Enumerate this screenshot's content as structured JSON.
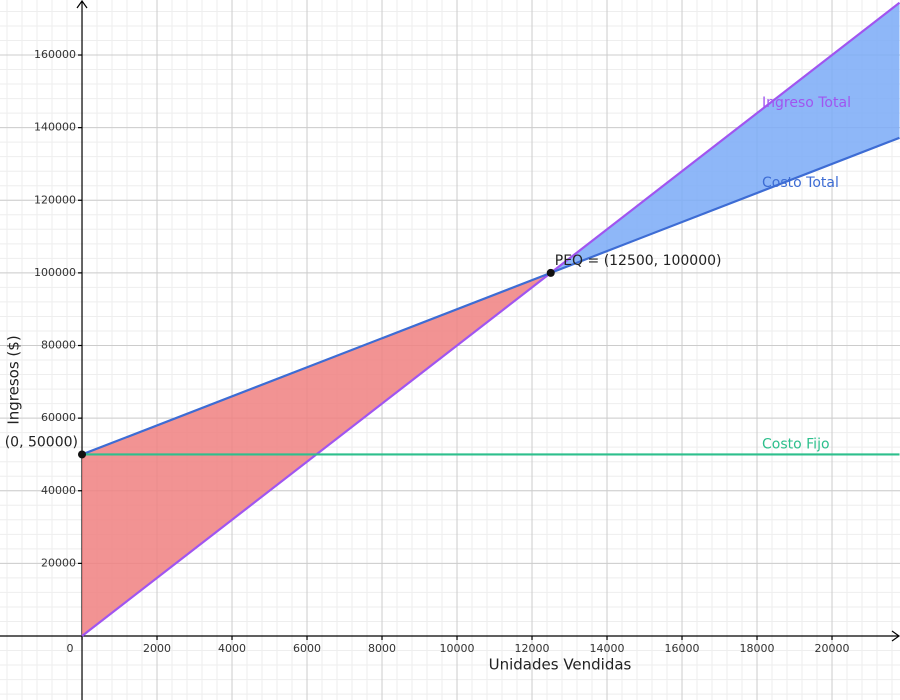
{
  "chart_data": {
    "type": "line",
    "x_label": "Unidades Vendidas",
    "y_label": "Ingresos ($)",
    "x": [
      0,
      12500,
      21800
    ],
    "series": [
      {
        "name": "Ingreso Total",
        "color": "#a055f0",
        "values": [
          0,
          100000,
          174400
        ]
      },
      {
        "name": "Costo Total",
        "color": "#3d6cd4",
        "values": [
          50000,
          100000,
          137200
        ]
      },
      {
        "name": "Costo Fijo",
        "color": "#2dbf8c",
        "values": [
          50000,
          50000,
          50000
        ]
      }
    ],
    "points": [
      {
        "label": "(0, 50000)",
        "x": 0,
        "y": 50000
      },
      {
        "label": "PEQ = (12500, 100000)",
        "x": 12500,
        "y": 100000
      }
    ],
    "xlim": [
      -2187,
      21813
    ],
    "ylim": [
      -17625,
      175150
    ],
    "xticks": [
      0,
      2000,
      4000,
      6000,
      8000,
      10000,
      12000,
      14000,
      16000,
      18000,
      20000
    ],
    "yticks": [
      20000,
      40000,
      60000,
      80000,
      100000,
      120000,
      140000,
      160000
    ],
    "grid": true
  }
}
